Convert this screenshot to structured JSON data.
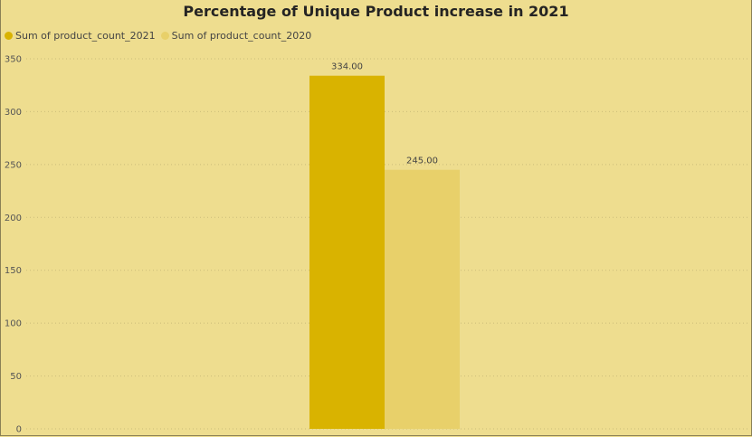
{
  "chart_data": {
    "type": "bar",
    "title": "Percentage of Unique Product increase in 2021",
    "categories": [
      ""
    ],
    "series": [
      {
        "name": "Sum of product_count_2021",
        "values": [
          334
        ],
        "label": "334.00",
        "color": "#d9b300"
      },
      {
        "name": "Sum of product_count_2020",
        "values": [
          245
        ],
        "label": "245.00",
        "color": "#e8d06a"
      }
    ],
    "ylim": [
      0,
      350
    ],
    "yticks": [
      0,
      50,
      100,
      150,
      200,
      250,
      300,
      350
    ],
    "ytick_labels": [
      "0",
      "50",
      "100",
      "150",
      "200",
      "250",
      "300",
      "350"
    ],
    "grid": true,
    "legend_position": "top-left",
    "xlabel": "",
    "ylabel": ""
  }
}
